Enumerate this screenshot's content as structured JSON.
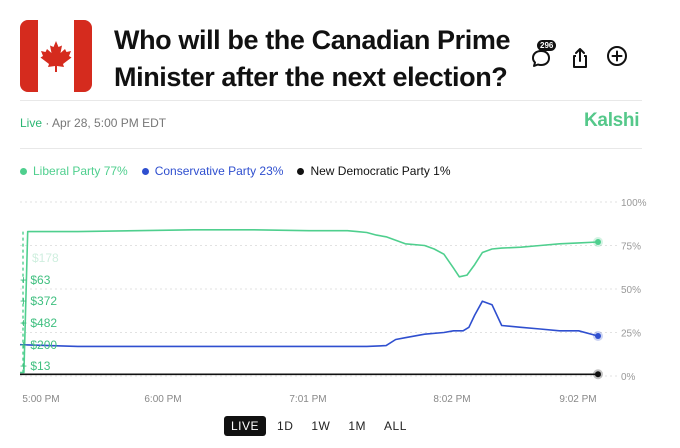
{
  "header": {
    "title": "Who will be the Canadian Prime Minister after the next election?",
    "comment_count": "296",
    "icons": [
      "comment-icon",
      "share-icon",
      "add-icon"
    ]
  },
  "meta": {
    "status": "Live",
    "separator": " · ",
    "datetime": "Apr 28, 5:00 PM EDT",
    "brand": "Kalshi"
  },
  "colors": {
    "liberal": "#4fcf8e",
    "conservative": "#2f4fcf",
    "ndp": "#111111",
    "brand": "#55c88a"
  },
  "legend": [
    {
      "label": "Liberal Party 77%",
      "color": "#4fcf8e"
    },
    {
      "label": "Conservative Party 23%",
      "color": "#2f4fcf"
    },
    {
      "label": "New Democratic Party 1%",
      "color": "#111111"
    }
  ],
  "trades": [
    {
      "text": "$178",
      "faded": true
    },
    {
      "text": "+ $63",
      "faded": false
    },
    {
      "text": "+ $372",
      "faded": false
    },
    {
      "text": "+ $482",
      "faded": false
    },
    {
      "text": "+ $200",
      "faded": false
    },
    {
      "text": "+ $13",
      "faded": false
    }
  ],
  "range_buttons": [
    {
      "label": "LIVE",
      "active": true
    },
    {
      "label": "1D",
      "active": false
    },
    {
      "label": "1W",
      "active": false
    },
    {
      "label": "1M",
      "active": false
    },
    {
      "label": "ALL",
      "active": false
    }
  ],
  "chart_data": {
    "type": "line",
    "title": "",
    "xlabel": "",
    "ylabel": "",
    "x_ticks": [
      "5:00 PM",
      "6:00 PM",
      "7:01 PM",
      "8:02 PM",
      "9:02 PM"
    ],
    "x_range_minutes": [
      0,
      244
    ],
    "y_ticks": [
      "100%",
      "75%",
      "50%",
      "25%",
      "0%"
    ],
    "ylim": [
      0,
      100
    ],
    "grid": true,
    "legend_position": "top-left",
    "series": [
      {
        "name": "Liberal Party",
        "color": "#4fcf8e",
        "x": [
          0,
          2,
          4,
          30,
          60,
          90,
          120,
          150,
          170,
          175,
          180,
          185,
          190,
          195,
          200,
          210,
          215,
          220,
          225,
          228,
          232,
          236,
          240,
          245,
          250,
          260,
          270,
          280,
          290,
          300
        ],
        "values": [
          2,
          2,
          83,
          83,
          83.5,
          84,
          84,
          83.5,
          83.5,
          83,
          82.5,
          81,
          80,
          78,
          76,
          75,
          73,
          70,
          62,
          57,
          58,
          64,
          71,
          73,
          73.5,
          74,
          75,
          76,
          76.5,
          77
        ]
      },
      {
        "name": "Conservative Party",
        "color": "#2f4fcf",
        "x": [
          0,
          30,
          60,
          90,
          120,
          150,
          180,
          190,
          195,
          200,
          210,
          220,
          225,
          230,
          233,
          236,
          240,
          245,
          250,
          260,
          270,
          280,
          290,
          300
        ],
        "values": [
          18,
          17,
          17,
          17,
          17,
          17,
          17,
          17.5,
          21,
          22,
          24,
          25,
          26,
          26,
          28,
          35,
          43,
          41,
          29,
          28,
          27,
          26,
          26,
          23
        ]
      },
      {
        "name": "New Democratic Party",
        "color": "#111111",
        "x": [
          0,
          300
        ],
        "values": [
          1,
          1
        ]
      }
    ]
  }
}
